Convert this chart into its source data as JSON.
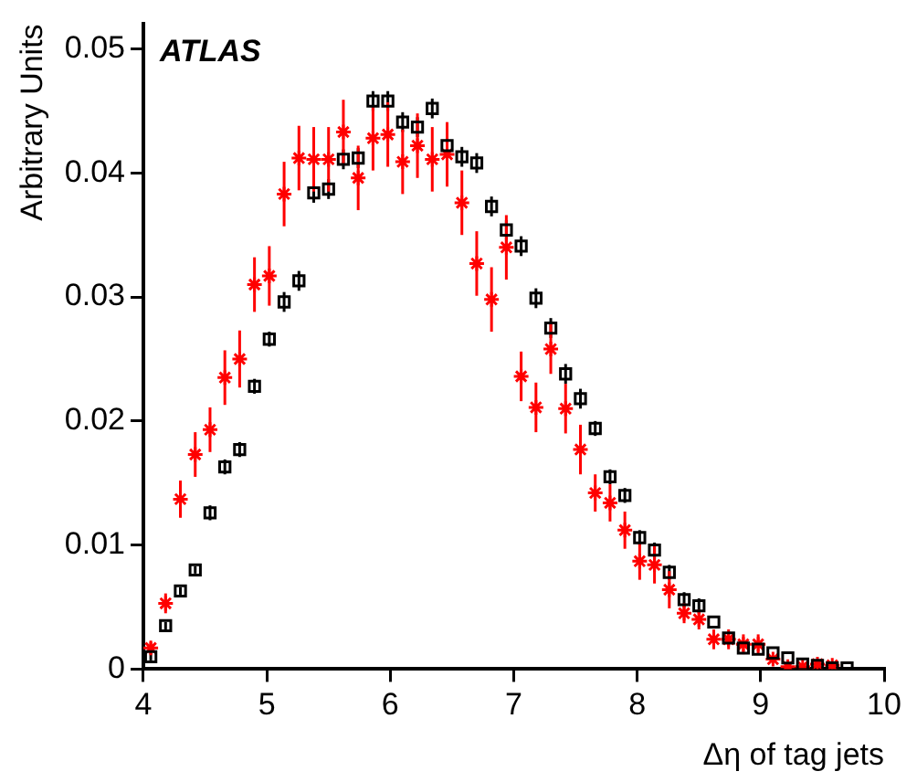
{
  "chart_data": {
    "type": "scatter",
    "xlabel": "Δη of tag jets",
    "ylabel": "Arbitrary Units",
    "annotations": [
      "ATLAS"
    ],
    "xlim": [
      4,
      10
    ],
    "xticks": [
      4,
      5,
      6,
      7,
      8,
      9,
      10
    ],
    "ylim": [
      0,
      0.052
    ],
    "yticks": [
      0,
      0.01,
      0.02,
      0.03,
      0.04,
      0.05
    ],
    "grid": false,
    "legend": false,
    "series": [
      {
        "color": "#000000",
        "marker": "square",
        "x": [
          4.06,
          4.18,
          4.3,
          4.42,
          4.54,
          4.66,
          4.78,
          4.9,
          5.02,
          5.14,
          5.26,
          5.38,
          5.5,
          5.62,
          5.74,
          5.86,
          5.98,
          6.1,
          6.22,
          6.34,
          6.46,
          6.58,
          6.7,
          6.82,
          6.94,
          7.06,
          7.18,
          7.3,
          7.42,
          7.54,
          7.66,
          7.78,
          7.9,
          8.02,
          8.14,
          8.26,
          8.38,
          8.5,
          8.62,
          8.74,
          8.86,
          8.98,
          9.1,
          9.22,
          9.34,
          9.46,
          9.58,
          9.7
        ],
        "values": [
          0.001,
          0.0035,
          0.0063,
          0.008,
          0.0126,
          0.0163,
          0.0177,
          0.0228,
          0.0266,
          0.0296,
          0.0313,
          0.0384,
          0.0387,
          0.0411,
          0.0412,
          0.0458,
          0.0458,
          0.0441,
          0.0437,
          0.0452,
          0.0422,
          0.0413,
          0.0408,
          0.0373,
          0.0354,
          0.0341,
          0.0299,
          0.0275,
          0.0238,
          0.0218,
          0.0194,
          0.0155,
          0.014,
          0.0106,
          0.0096,
          0.0078,
          0.0056,
          0.0051,
          0.0038,
          0.0025,
          0.0017,
          0.0016,
          0.0013,
          0.0009,
          0.0004,
          0.0003,
          0.0001,
          0.0001
        ],
        "errors": [
          0.0003,
          0.0003,
          0.0003,
          0.0003,
          0.0006,
          0.0006,
          0.0006,
          0.0006,
          0.0006,
          0.0008,
          0.0008,
          0.0008,
          0.0008,
          0.0008,
          0.0008,
          0.0008,
          0.0008,
          0.0008,
          0.0008,
          0.0008,
          0.0008,
          0.0008,
          0.0008,
          0.0008,
          0.0008,
          0.0008,
          0.0008,
          0.0008,
          0.0008,
          0.0008,
          0.0006,
          0.0006,
          0.0006,
          0.0006,
          0.0006,
          0.0006,
          0.0006,
          0.0006,
          null,
          null,
          null,
          null,
          null,
          null,
          null,
          null,
          null,
          null
        ]
      },
      {
        "color": "#ff0000",
        "marker": "cross",
        "x": [
          4.06,
          4.18,
          4.3,
          4.42,
          4.54,
          4.66,
          4.78,
          4.9,
          5.02,
          5.14,
          5.26,
          5.38,
          5.5,
          5.62,
          5.74,
          5.86,
          5.98,
          6.1,
          6.22,
          6.34,
          6.46,
          6.58,
          6.7,
          6.82,
          6.94,
          7.06,
          7.18,
          7.3,
          7.42,
          7.54,
          7.66,
          7.78,
          7.9,
          8.02,
          8.14,
          8.26,
          8.38,
          8.5,
          8.62,
          8.74,
          8.86,
          8.98,
          9.1,
          9.22,
          9.34,
          9.46,
          9.58
        ],
        "values": [
          0.0017,
          0.0053,
          0.0137,
          0.0173,
          0.0193,
          0.0235,
          0.025,
          0.031,
          0.0317,
          0.0383,
          0.0412,
          0.0411,
          0.0411,
          0.0433,
          0.0396,
          0.0428,
          0.0431,
          0.0409,
          0.0422,
          0.0411,
          0.0415,
          0.0376,
          0.0327,
          0.0298,
          0.034,
          0.0236,
          0.0211,
          0.0258,
          0.021,
          0.0177,
          0.0142,
          0.0134,
          0.0112,
          0.0087,
          0.0084,
          0.0064,
          0.0045,
          0.004,
          0.0024,
          0.0024,
          0.002,
          0.002,
          0.0008,
          0.0002,
          0.0002,
          0.0004,
          0.0003
        ],
        "errors": [
          0.0005,
          0.0008,
          0.0015,
          0.0018,
          0.0018,
          0.0022,
          0.0023,
          0.0022,
          0.0024,
          0.0026,
          0.0026,
          0.0026,
          0.0026,
          0.0026,
          0.0026,
          0.0026,
          0.0026,
          0.0026,
          0.0026,
          0.0026,
          0.0026,
          0.0026,
          0.0026,
          0.0026,
          0.0026,
          0.002,
          0.002,
          0.002,
          0.002,
          0.002,
          0.0015,
          0.0015,
          0.0015,
          0.0015,
          0.0015,
          0.0015,
          0.0008,
          0.0008,
          0.0008,
          0.0008,
          0.0008,
          0.0008,
          null,
          null,
          null,
          null,
          null
        ]
      }
    ]
  }
}
